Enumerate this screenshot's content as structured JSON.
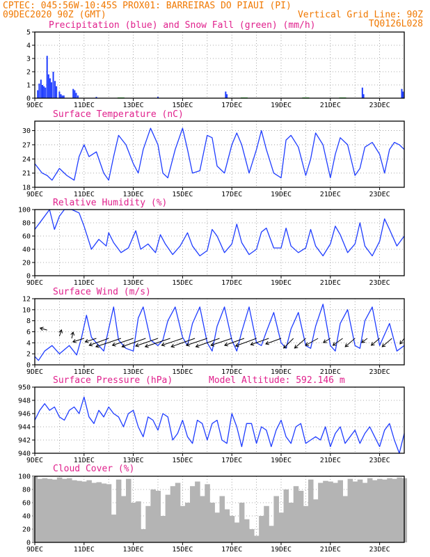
{
  "header": {
    "line1_left": "CPTEC:  045:56W-10:45S  PROX01: BARREIRAS DO PIAUI (PI)",
    "line2_left": "09DEC2020 90Z (GMT)",
    "line2_right": "Vertical Grid Line: 90Z",
    "line3_right": "TQ0126L028"
  },
  "x_axis": {
    "range": [
      "09DEC",
      "24DEC"
    ],
    "tick_labels": [
      "9DEC",
      "11DEC",
      "13DEC",
      "15DEC",
      "17DEC",
      "19DEC",
      "21DEC",
      "23DEC"
    ]
  },
  "colors": {
    "precip": "#1e3cff",
    "snow": "#00b000",
    "line": "#1e3cff",
    "cloud": "#b4b4b4",
    "header": "#f07800",
    "panel_title": "#e0208c"
  },
  "chart_data": [
    {
      "type": "bar",
      "title": "Precipitation (blue) and Snow Fall (green) (mm/h)",
      "x_range": [
        0,
        15
      ],
      "ylim": [
        0,
        5
      ],
      "yticks": [
        0,
        1,
        2,
        3,
        4,
        5
      ],
      "series": [
        {
          "name": "Precipitation",
          "color": "#1e3cff",
          "x": [
            0.12,
            0.18,
            0.25,
            0.31,
            0.37,
            0.43,
            0.5,
            0.56,
            0.62,
            0.68,
            0.75,
            0.82,
            0.88,
            1.0,
            1.06,
            1.12,
            1.18,
            1.56,
            1.62,
            1.68,
            1.75,
            2.5,
            5.0,
            7.75,
            7.8,
            13.3,
            13.35,
            14.9,
            14.95
          ],
          "values": [
            0.6,
            1.1,
            1.4,
            1.0,
            0.9,
            0.8,
            3.2,
            1.8,
            1.5,
            1.2,
            2.0,
            1.3,
            0.9,
            0.5,
            0.3,
            0.2,
            0.2,
            0.7,
            0.6,
            0.4,
            0.2,
            0.1,
            0.1,
            0.5,
            0.3,
            0.8,
            0.3,
            0.7,
            0.5
          ]
        },
        {
          "name": "Snow Fall",
          "color": "#00b000",
          "x": [
            3.5,
            8.5,
            11.0,
            12.5
          ],
          "values": [
            0.05,
            0.05,
            0.05,
            0.05
          ]
        }
      ]
    },
    {
      "type": "line",
      "title": "Surface Temperature (nC)",
      "x_range": [
        0,
        15
      ],
      "ylim": [
        18,
        32
      ],
      "yticks": [
        18,
        21,
        24,
        27,
        30
      ],
      "series": [
        {
          "name": "Surface Temperature",
          "color": "#1e3cff",
          "x": [
            0.0,
            0.3,
            0.5,
            0.7,
            1.0,
            1.3,
            1.6,
            1.8,
            2.0,
            2.2,
            2.5,
            2.8,
            3.0,
            3.2,
            3.4,
            3.7,
            4.0,
            4.2,
            4.4,
            4.7,
            5.0,
            5.2,
            5.4,
            5.7,
            6.0,
            6.2,
            6.4,
            6.7,
            7.0,
            7.2,
            7.4,
            7.7,
            8.0,
            8.2,
            8.4,
            8.7,
            9.0,
            9.2,
            9.4,
            9.7,
            10.0,
            10.2,
            10.4,
            10.7,
            11.0,
            11.2,
            11.4,
            11.7,
            12.0,
            12.2,
            12.4,
            12.7,
            13.0,
            13.2,
            13.4,
            13.7,
            14.0,
            14.2,
            14.4,
            14.6,
            14.8,
            15.0
          ],
          "values": [
            23,
            21,
            20.5,
            19.5,
            22,
            20.5,
            19.5,
            24.5,
            27,
            24.5,
            25.5,
            21,
            19.5,
            24.5,
            29,
            27,
            23,
            21,
            26,
            30.5,
            27,
            21,
            20,
            26,
            30.5,
            26,
            21,
            21.5,
            29,
            28.5,
            22.5,
            21,
            27,
            29.5,
            27,
            21,
            26,
            30,
            26,
            21,
            20,
            28,
            29,
            26.5,
            20.5,
            24,
            29.5,
            27,
            20,
            25,
            28.5,
            27,
            20.5,
            22,
            26.5,
            27.5,
            25,
            21,
            26,
            27.5,
            27,
            26
          ]
        }
      ]
    },
    {
      "type": "line",
      "title": "Relative Humidity (%)",
      "x_range": [
        0,
        15
      ],
      "ylim": [
        0,
        100
      ],
      "yticks": [
        0,
        20,
        40,
        60,
        80,
        100
      ],
      "series": [
        {
          "name": "Relative Humidity",
          "color": "#1e3cff",
          "x": [
            0.0,
            0.3,
            0.6,
            0.8,
            1.0,
            1.2,
            1.5,
            1.8,
            2.0,
            2.3,
            2.6,
            2.9,
            3.0,
            3.2,
            3.5,
            3.8,
            4.1,
            4.3,
            4.6,
            4.9,
            5.1,
            5.3,
            5.6,
            5.9,
            6.2,
            6.4,
            6.7,
            7.0,
            7.2,
            7.4,
            7.7,
            8.0,
            8.2,
            8.4,
            8.7,
            9.0,
            9.2,
            9.4,
            9.7,
            10.0,
            10.2,
            10.4,
            10.7,
            11.0,
            11.2,
            11.4,
            11.7,
            12.0,
            12.2,
            12.4,
            12.7,
            13.0,
            13.2,
            13.4,
            13.7,
            14.0,
            14.2,
            14.4,
            14.7,
            15.0
          ],
          "values": [
            70,
            85,
            100,
            70,
            90,
            100,
            100,
            95,
            75,
            40,
            55,
            45,
            65,
            50,
            35,
            42,
            68,
            40,
            48,
            35,
            62,
            48,
            32,
            45,
            65,
            45,
            30,
            38,
            70,
            60,
            35,
            48,
            78,
            50,
            32,
            40,
            66,
            72,
            42,
            42,
            72,
            45,
            35,
            42,
            70,
            45,
            30,
            48,
            75,
            62,
            35,
            48,
            80,
            45,
            30,
            52,
            86,
            70,
            45,
            60
          ]
        }
      ]
    },
    {
      "type": "line",
      "title": "Surface Wind (m/s)",
      "x_range": [
        0,
        15
      ],
      "ylim": [
        0,
        12
      ],
      "yticks": [
        0,
        2,
        4,
        6,
        8,
        10,
        12
      ],
      "series": [
        {
          "name": "Surface Wind",
          "color": "#1e3cff",
          "x": [
            0.0,
            0.15,
            0.4,
            0.7,
            1.0,
            1.4,
            1.7,
            1.9,
            2.1,
            2.3,
            2.6,
            2.8,
            3.0,
            3.2,
            3.4,
            3.7,
            4.0,
            4.2,
            4.4,
            4.7,
            5.0,
            5.2,
            5.4,
            5.7,
            6.0,
            6.2,
            6.4,
            6.7,
            7.0,
            7.2,
            7.4,
            7.7,
            8.0,
            8.2,
            8.4,
            8.7,
            9.0,
            9.2,
            9.4,
            9.7,
            10.0,
            10.2,
            10.4,
            10.7,
            11.0,
            11.2,
            11.4,
            11.7,
            12.0,
            12.2,
            12.4,
            12.7,
            13.0,
            13.2,
            13.4,
            13.7,
            14.0,
            14.2,
            14.4,
            14.7,
            15.0
          ],
          "values": [
            1.5,
            0.8,
            2.5,
            3.5,
            2.0,
            3.5,
            1.8,
            5.0,
            9.0,
            5.0,
            3.5,
            2.5,
            6.5,
            10.5,
            4.5,
            3.0,
            2.5,
            8.5,
            10.5,
            4.5,
            3.5,
            4.5,
            8.0,
            10.5,
            5.0,
            3.5,
            7.5,
            10.5,
            4.0,
            2.5,
            7.0,
            10.5,
            4.5,
            2.5,
            6.0,
            10.5,
            4.0,
            3.5,
            6.0,
            9.5,
            4.0,
            3.0,
            6.5,
            9.5,
            3.5,
            3.0,
            7.0,
            11.0,
            3.5,
            2.5,
            7.5,
            10.0,
            3.5,
            3.0,
            8.0,
            10.5,
            3.5,
            5.5,
            7.5,
            2.5,
            3.5
          ]
        }
      ],
      "vectors": [
        {
          "x": 0.5,
          "y": 6.3,
          "dx": -10,
          "dy": -3
        },
        {
          "x": 1.0,
          "y": 5.2,
          "dx": 3,
          "dy": -9
        },
        {
          "x": 1.5,
          "y": 4.8,
          "dx": 2,
          "dy": -9
        },
        {
          "x": 2.0,
          "y": 4.8,
          "dx": -16,
          "dy": 5
        },
        {
          "x": 2.5,
          "y": 4.8,
          "dx": -16,
          "dy": 5
        },
        {
          "x": 3.0,
          "y": 4.8,
          "dx": -28,
          "dy": 10
        },
        {
          "x": 3.5,
          "y": 4.8,
          "dx": -36,
          "dy": 12
        },
        {
          "x": 4.0,
          "y": 4.8,
          "dx": -30,
          "dy": 10
        },
        {
          "x": 4.5,
          "y": 4.8,
          "dx": -34,
          "dy": 12
        },
        {
          "x": 5.0,
          "y": 4.8,
          "dx": -32,
          "dy": 11
        },
        {
          "x": 5.5,
          "y": 4.8,
          "dx": -36,
          "dy": 12
        },
        {
          "x": 6.0,
          "y": 4.8,
          "dx": -30,
          "dy": 10
        },
        {
          "x": 6.5,
          "y": 4.8,
          "dx": -34,
          "dy": 12
        },
        {
          "x": 7.0,
          "y": 4.8,
          "dx": -30,
          "dy": 10
        },
        {
          "x": 7.5,
          "y": 4.8,
          "dx": -34,
          "dy": 12
        },
        {
          "x": 8.0,
          "y": 4.8,
          "dx": -30,
          "dy": 10
        },
        {
          "x": 8.5,
          "y": 4.8,
          "dx": -28,
          "dy": 10
        },
        {
          "x": 9.0,
          "y": 4.8,
          "dx": -30,
          "dy": 11
        },
        {
          "x": 9.5,
          "y": 4.8,
          "dx": -26,
          "dy": 9
        },
        {
          "x": 10.0,
          "y": 4.8,
          "dx": -22,
          "dy": 8
        },
        {
          "x": 10.5,
          "y": 4.8,
          "dx": -14,
          "dy": 14
        },
        {
          "x": 11.0,
          "y": 4.8,
          "dx": -16,
          "dy": 14
        },
        {
          "x": 11.5,
          "y": 4.8,
          "dx": -18,
          "dy": 10
        },
        {
          "x": 12.0,
          "y": 4.8,
          "dx": -10,
          "dy": 6
        },
        {
          "x": 12.5,
          "y": 4.8,
          "dx": -14,
          "dy": 10
        },
        {
          "x": 13.0,
          "y": 4.8,
          "dx": -14,
          "dy": 12
        },
        {
          "x": 13.5,
          "y": 4.8,
          "dx": -8,
          "dy": 6
        },
        {
          "x": 14.0,
          "y": 4.8,
          "dx": -12,
          "dy": 10
        },
        {
          "x": 14.5,
          "y": 4.8,
          "dx": -14,
          "dy": 12
        },
        {
          "x": 15.0,
          "y": 4.8,
          "dx": -6,
          "dy": 8
        }
      ]
    },
    {
      "type": "line",
      "title": "Surface Pressure (hPa)",
      "annotation": "Model Altitude: 592.146 m",
      "x_range": [
        0,
        15
      ],
      "ylim": [
        940,
        950
      ],
      "yticks": [
        940,
        942,
        944,
        946,
        948,
        950
      ],
      "series": [
        {
          "name": "Surface Pressure",
          "color": "#1e3cff",
          "x": [
            0.0,
            0.2,
            0.4,
            0.6,
            0.8,
            1.0,
            1.2,
            1.4,
            1.6,
            1.8,
            2.0,
            2.2,
            2.4,
            2.6,
            2.8,
            3.0,
            3.2,
            3.4,
            3.6,
            3.8,
            4.0,
            4.2,
            4.4,
            4.6,
            4.8,
            5.0,
            5.2,
            5.4,
            5.6,
            5.8,
            6.0,
            6.2,
            6.4,
            6.6,
            6.8,
            7.0,
            7.2,
            7.4,
            7.6,
            7.8,
            8.0,
            8.2,
            8.4,
            8.6,
            8.8,
            9.0,
            9.2,
            9.4,
            9.6,
            9.8,
            10.0,
            10.2,
            10.4,
            10.6,
            10.8,
            11.0,
            11.2,
            11.4,
            11.6,
            11.8,
            12.0,
            12.2,
            12.4,
            12.6,
            12.8,
            13.0,
            13.2,
            13.4,
            13.6,
            13.8,
            14.0,
            14.2,
            14.4,
            14.6,
            14.8,
            15.0
          ],
          "values": [
            945,
            946.5,
            947.5,
            946.5,
            947,
            945.5,
            945,
            946.5,
            947,
            946,
            948.5,
            945.5,
            944.5,
            946.5,
            945.5,
            947,
            946,
            945.5,
            944,
            946,
            946.5,
            944,
            942.5,
            945.5,
            945,
            943.5,
            946,
            945.5,
            942,
            943,
            945,
            942.5,
            941.5,
            945,
            944.5,
            942,
            944.5,
            945,
            942,
            941.5,
            946,
            944,
            941,
            944.5,
            944.5,
            941.5,
            944,
            943.5,
            941,
            943.5,
            945,
            942.5,
            941.5,
            944,
            944.5,
            941.5,
            942,
            942.5,
            942,
            944,
            941,
            943,
            944,
            941.5,
            942.5,
            943.5,
            941.5,
            943,
            944,
            942.5,
            941,
            943.5,
            944.5,
            942,
            940,
            943
          ]
        }
      ]
    },
    {
      "type": "bar",
      "title": "Cloud Cover (%)",
      "x_range": [
        0,
        15
      ],
      "ylim": [
        0,
        100
      ],
      "yticks": [
        0,
        20,
        40,
        60,
        80,
        100
      ],
      "series": [
        {
          "name": "Cloud Cover",
          "color": "#b4b4b4",
          "x": [
            0.0,
            0.2,
            0.4,
            0.6,
            0.8,
            1.0,
            1.2,
            1.4,
            1.6,
            1.8,
            2.0,
            2.2,
            2.4,
            2.6,
            2.8,
            3.0,
            3.2,
            3.4,
            3.6,
            3.8,
            4.0,
            4.2,
            4.4,
            4.6,
            4.8,
            5.0,
            5.2,
            5.4,
            5.6,
            5.8,
            6.0,
            6.2,
            6.4,
            6.6,
            6.8,
            7.0,
            7.2,
            7.4,
            7.6,
            7.8,
            8.0,
            8.2,
            8.4,
            8.6,
            8.8,
            9.0,
            9.2,
            9.4,
            9.6,
            9.8,
            10.0,
            10.2,
            10.4,
            10.6,
            10.8,
            11.0,
            11.2,
            11.4,
            11.6,
            11.8,
            12.0,
            12.2,
            12.4,
            12.6,
            12.8,
            13.0,
            13.2,
            13.4,
            13.6,
            13.8,
            14.0,
            14.2,
            14.4,
            14.6,
            14.8,
            15.0
          ],
          "values": [
            100,
            96,
            97,
            96,
            95,
            98,
            96,
            97,
            94,
            93,
            92,
            94,
            90,
            91,
            89,
            88,
            42,
            95,
            70,
            96,
            60,
            62,
            20,
            55,
            80,
            78,
            40,
            72,
            85,
            90,
            55,
            60,
            85,
            92,
            70,
            88,
            60,
            45,
            70,
            50,
            40,
            30,
            60,
            35,
            20,
            10,
            40,
            55,
            25,
            70,
            45,
            80,
            60,
            85,
            78,
            55,
            95,
            65,
            90,
            93,
            92,
            90,
            94,
            70,
            96,
            92,
            95,
            90,
            97,
            94,
            96,
            95,
            97,
            96,
            98,
            97
          ]
        }
      ]
    }
  ]
}
